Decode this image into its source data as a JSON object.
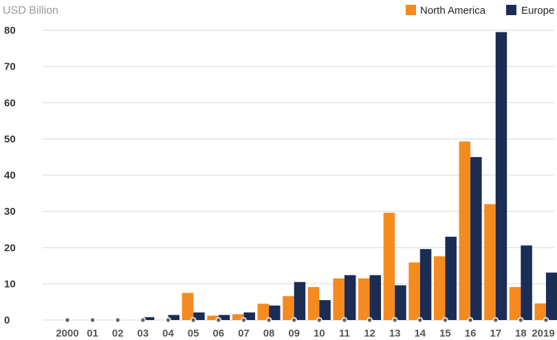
{
  "chart_data": {
    "type": "bar",
    "unit_label": "USD Billion",
    "categories": [
      "2000",
      "01",
      "02",
      "03",
      "04",
      "05",
      "06",
      "07",
      "08",
      "09",
      "10",
      "11",
      "12",
      "13",
      "14",
      "15",
      "16",
      "17",
      "18",
      "2019"
    ],
    "series": [
      {
        "name": "North America",
        "color": "#f58a1f",
        "values": [
          0,
          0,
          0,
          0,
          0,
          7.5,
          1.2,
          1.6,
          4.5,
          6.6,
          9.1,
          11.5,
          11.5,
          29.6,
          15.9,
          17.6,
          49.3,
          32.0,
          9.1,
          4.6
        ]
      },
      {
        "name": "Europe",
        "color": "#1b2c55",
        "values": [
          0,
          0,
          0,
          0.8,
          1.4,
          2.1,
          1.4,
          2.1,
          4.0,
          10.5,
          5.5,
          12.4,
          12.4,
          9.6,
          19.6,
          23.0,
          45.0,
          79.5,
          20.6,
          13.1
        ]
      }
    ],
    "ylim": [
      0,
      80
    ],
    "yticks": [
      0,
      10,
      20,
      30,
      40,
      50,
      60,
      70,
      80
    ],
    "grid": true,
    "legend_position": "top-right"
  }
}
